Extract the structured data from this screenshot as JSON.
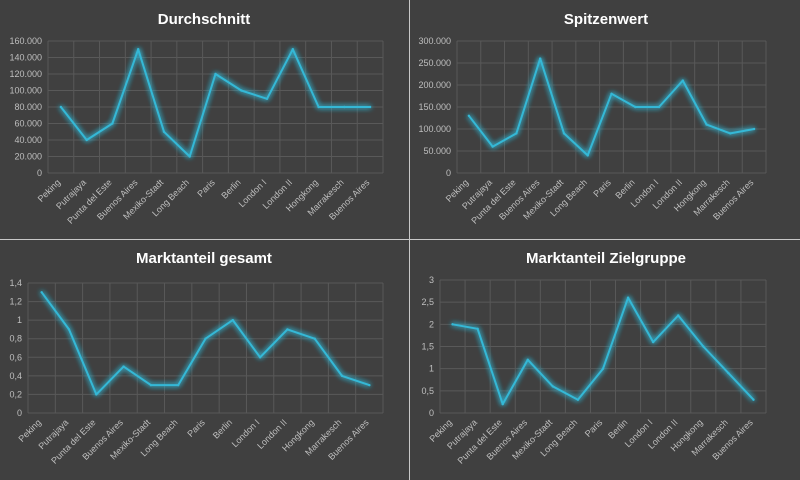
{
  "colors": {
    "background": "#404040",
    "divider": "#c8c8c8",
    "gridline": "#595959",
    "series": "#34b8d6",
    "glow": "#1ea0c8",
    "tick_text": "#bfbfbf",
    "title_text": "#ffffff"
  },
  "chart_data": [
    {
      "type": "line",
      "title": "Durchschnitt",
      "xlabel": "",
      "ylabel": "",
      "grid": true,
      "legend": "none",
      "ylim": [
        0,
        160000
      ],
      "y_ticks": [
        0,
        20000,
        40000,
        60000,
        80000,
        100000,
        120000,
        140000,
        160000
      ],
      "y_tick_labels": [
        "0",
        "20.000",
        "40.000",
        "60.000",
        "80.000",
        "100.000",
        "120.000",
        "140.000",
        "160.000"
      ],
      "categories": [
        "Peking",
        "Putrajaya",
        "Punta del Este",
        "Buenos Aires",
        "Mexiko-Stadt",
        "Long Beach",
        "Paris",
        "Berlin",
        "London I",
        "London II",
        "Hongkong",
        "Marrakesch",
        "Buenos Aires"
      ],
      "values": [
        80000,
        40000,
        60000,
        150000,
        50000,
        20000,
        120000,
        100000,
        90000,
        150000,
        80000,
        80000,
        80000
      ]
    },
    {
      "type": "line",
      "title": "Spitzenwert",
      "xlabel": "",
      "ylabel": "",
      "grid": true,
      "legend": "none",
      "ylim": [
        0,
        300000
      ],
      "y_ticks": [
        0,
        50000,
        100000,
        150000,
        200000,
        250000,
        300000
      ],
      "y_tick_labels": [
        "0",
        "50.000",
        "100.000",
        "150.000",
        "200.000",
        "250.000",
        "300.000"
      ],
      "categories": [
        "Peking",
        "Putrajaya",
        "Punta del Este",
        "Buenos Aires",
        "Mexiko-Stadt",
        "Long Beach",
        "Paris",
        "Berlin",
        "London I",
        "London II",
        "Hongkong",
        "Marrakesch",
        "Buenos Aires"
      ],
      "values": [
        130000,
        60000,
        90000,
        260000,
        90000,
        40000,
        180000,
        150000,
        150000,
        210000,
        110000,
        90000,
        100000
      ]
    },
    {
      "type": "line",
      "title": "Marktanteil gesamt",
      "xlabel": "",
      "ylabel": "",
      "grid": true,
      "legend": "none",
      "ylim": [
        0,
        1.4
      ],
      "y_ticks": [
        0,
        0.2,
        0.4,
        0.6,
        0.8,
        1,
        1.2,
        1.4
      ],
      "y_tick_labels": [
        "0",
        "0,2",
        "0,4",
        "0,6",
        "0,8",
        "1",
        "1,2",
        "1,4"
      ],
      "categories": [
        "Peking",
        "Putrajaya",
        "Punta del Este",
        "Buenos Aires",
        "Mexiko-Stadt",
        "Long Beach",
        "Paris",
        "Berlin",
        "London I",
        "London II",
        "Hongkong",
        "Marrakesch",
        "Buenos Aires"
      ],
      "values": [
        1.3,
        0.9,
        0.2,
        0.5,
        0.3,
        0.3,
        0.8,
        1.0,
        0.6,
        0.9,
        0.8,
        0.4,
        0.3
      ]
    },
    {
      "type": "line",
      "title": "Marktanteil Zielgruppe",
      "xlabel": "",
      "ylabel": "",
      "grid": true,
      "legend": "none",
      "ylim": [
        0,
        3
      ],
      "y_ticks": [
        0,
        0.5,
        1,
        1.5,
        2,
        2.5,
        3
      ],
      "y_tick_labels": [
        "0",
        "0,5",
        "1",
        "1,5",
        "2",
        "2,5",
        "3"
      ],
      "categories": [
        "Peking",
        "Putrajaya",
        "Punta del Este",
        "Buenos Aires",
        "Mexiko-Stadt",
        "Long Beach",
        "Paris",
        "Berlin",
        "London I",
        "London II",
        "Hongkong",
        "Marrakesch",
        "Buenos Aires"
      ],
      "values": [
        2.0,
        1.9,
        0.2,
        1.2,
        0.6,
        0.3,
        1.0,
        2.6,
        1.6,
        2.2,
        1.5,
        0.9,
        0.3
      ]
    }
  ]
}
